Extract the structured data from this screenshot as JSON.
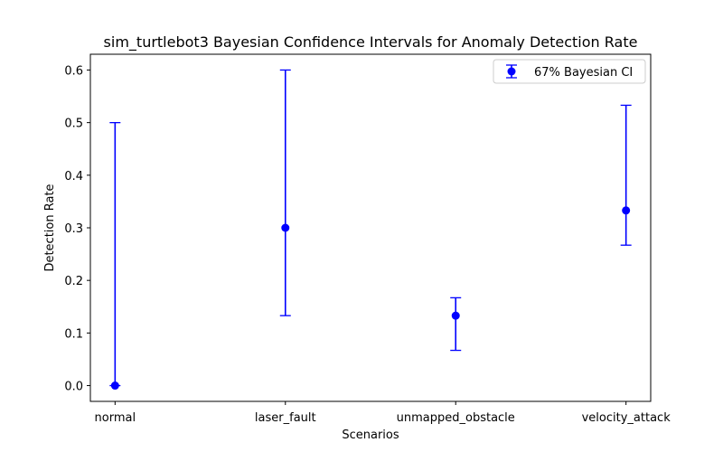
{
  "chart_data": {
    "type": "errorbar",
    "title": "sim_turtlebot3 Bayesian Confidence Intervals for Anomaly Detection Rate",
    "xlabel": "Scenarios",
    "ylabel": "Detection Rate",
    "categories": [
      "normal",
      "laser_fault",
      "unmapped_obstacle",
      "velocity_attack"
    ],
    "series": [
      {
        "name": "67% Bayesian CI",
        "values": [
          0.0,
          0.3,
          0.133,
          0.333
        ],
        "lower": [
          0.0,
          0.133,
          0.067,
          0.267
        ],
        "upper": [
          0.5,
          0.6,
          0.167,
          0.533
        ],
        "color": "#0000ff"
      }
    ],
    "yticks": [
      0.0,
      0.1,
      0.2,
      0.3,
      0.4,
      0.5,
      0.6
    ],
    "ytick_labels": [
      "0.0",
      "0.1",
      "0.2",
      "0.3",
      "0.4",
      "0.5",
      "0.6"
    ],
    "ylim": [
      -0.03,
      0.63
    ],
    "grid": false,
    "legend": "upper-right"
  }
}
